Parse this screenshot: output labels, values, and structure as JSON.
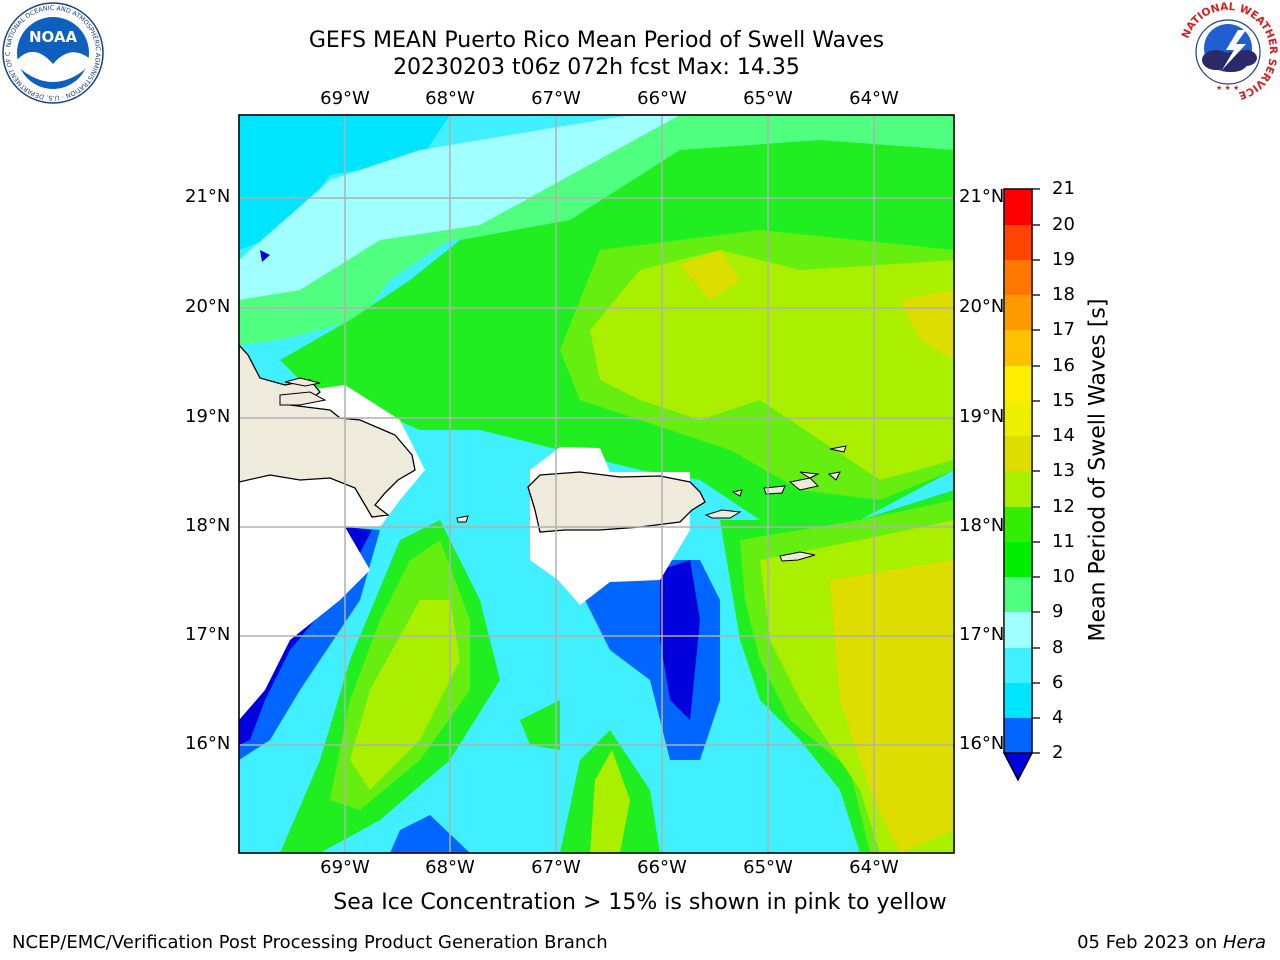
{
  "title": {
    "line1": "GEFS MEAN Puerto Rico Mean Period of Swell Waves",
    "line2": "20230203 t06z 072h fcst   Max: 14.35"
  },
  "map": {
    "lon_labels": [
      "69°W",
      "68°W",
      "67°W",
      "66°W",
      "65°W",
      "64°W"
    ],
    "lat_labels": [
      "21°N",
      "20°N",
      "19°N",
      "18°N",
      "17°N",
      "16°N"
    ],
    "land_color": "#eeeadc",
    "grid_color": "#b0b0b0"
  },
  "colorbar": {
    "title": "Mean Period of Swell Waves [s]",
    "ticks": [
      "21",
      "20",
      "19",
      "18",
      "17",
      "16",
      "15",
      "14",
      "13",
      "12",
      "11",
      "10",
      "9",
      "8",
      "6",
      "4",
      "2"
    ],
    "colors": [
      "#0000dd",
      "#0066ff",
      "#00e5ff",
      "#40f0ff",
      "#a0ffff",
      "#50ff80",
      "#20ee20",
      "#66ee10",
      "#aaee00",
      "#dddd00",
      "#eeee00",
      "#ffee00",
      "#ffc000",
      "#ff9900",
      "#ff7700",
      "#ff4400",
      "#ff2200",
      "#ff0000"
    ]
  },
  "subtitle": "Sea Ice Concentration > 15% is shown in pink to yellow",
  "footer": {
    "left": "NCEP/EMC/Verification Post Processing Product Generation Branch",
    "right_date": "05 Feb 2023 on ",
    "right_host": "Hera"
  },
  "logos": {
    "noaa_text": "NOAA",
    "noaa_ring": "NATIONAL OCEANIC AND ATMOSPHERIC ADMINISTRATION · U.S. DEPARTMENT OF COMMERCE",
    "nws_ring": "NATIONAL WEATHER SERVICE"
  }
}
